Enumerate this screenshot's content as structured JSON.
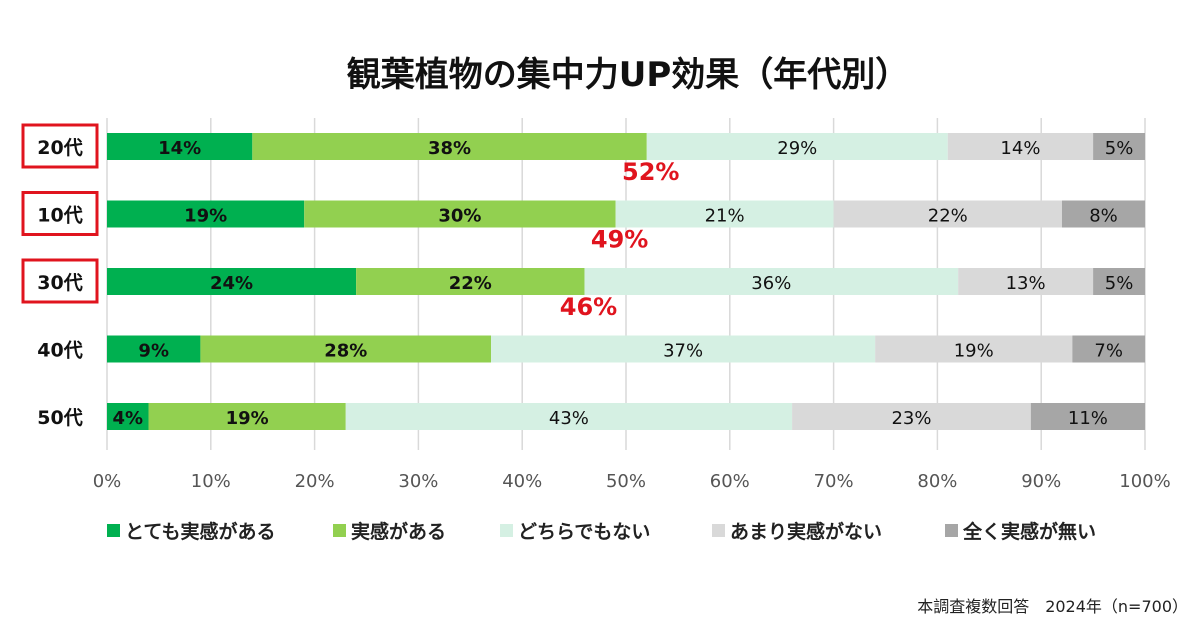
{
  "chart_data": {
    "type": "bar",
    "orientation": "horizontal",
    "stacked": true,
    "title": "観葉植物の集中力UP効果（年代別）",
    "categories": [
      "20代",
      "10代",
      "30代",
      "40代",
      "50代"
    ],
    "highlighted_categories": [
      "20代",
      "10代",
      "30代"
    ],
    "series": [
      {
        "name": "とても実感がある",
        "color": "#00b050",
        "values": [
          14,
          19,
          24,
          9,
          4
        ]
      },
      {
        "name": "実感がある",
        "color": "#92d050",
        "values": [
          38,
          30,
          22,
          28,
          19
        ]
      },
      {
        "name": "どちらでもない",
        "color": "#d5f0e3",
        "values": [
          29,
          21,
          36,
          37,
          43
        ]
      },
      {
        "name": "あまり実感がない",
        "color": "#d9d9d9",
        "values": [
          14,
          22,
          13,
          19,
          23
        ]
      },
      {
        "name": "全く実感が無い",
        "color": "#a6a6a6",
        "values": [
          5,
          8,
          5,
          7,
          11
        ]
      }
    ],
    "annotations": [
      {
        "category": "20代",
        "text": "52%"
      },
      {
        "category": "10代",
        "text": "49%"
      },
      {
        "category": "30代",
        "text": "46%"
      }
    ],
    "xlim": [
      0,
      100
    ],
    "xticks": [
      "0%",
      "10%",
      "20%",
      "30%",
      "40%",
      "50%",
      "60%",
      "70%",
      "80%",
      "90%",
      "100%"
    ],
    "grid": true,
    "legend_position": "bottom",
    "highlight_color": "#e0141e",
    "footnote": "本調査複数回答　2024年（n=700）"
  }
}
